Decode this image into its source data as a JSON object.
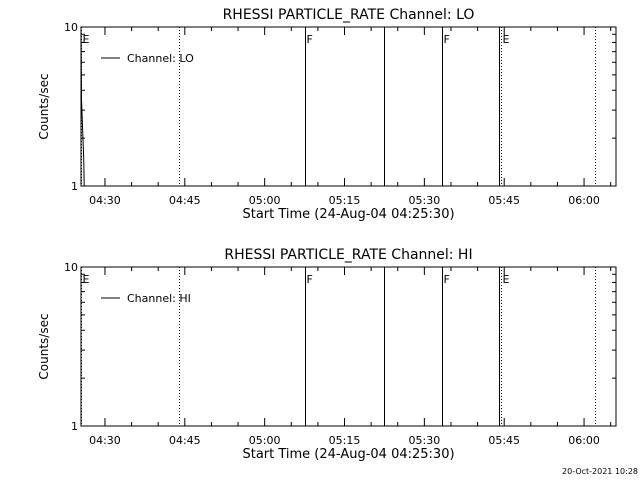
{
  "footer": {
    "timestamp": "20-Oct-2021 10:28"
  },
  "chart_data": [
    {
      "type": "line",
      "title": "RHESSI PARTICLE_RATE Channel: LO",
      "xlabel": "Start Time (24-Aug-04 04:25:30)",
      "ylabel": "Counts/sec",
      "xlim": [
        "04:25:30",
        "06:06:00"
      ],
      "ylim": [
        1,
        10
      ],
      "yscale": "log",
      "grid": false,
      "legend": "top-left",
      "xticks": [
        "04:30",
        "04:45",
        "05:00",
        "05:15",
        "05:30",
        "05:45",
        "06:00"
      ],
      "yticks": [
        "1",
        "10"
      ],
      "series": [
        {
          "name": "Channel: LO",
          "x": [
            "04:25:30",
            "04:25:36",
            "04:26:00",
            "04:26:06"
          ],
          "y": [
            10,
            3.5,
            1.5,
            1
          ]
        }
      ],
      "markers": [
        {
          "time": "04:25:30",
          "style": "dotted",
          "label": "E"
        },
        {
          "time": "04:43:50",
          "style": "dotted",
          "label": ""
        },
        {
          "time": "05:07:30",
          "style": "solid",
          "label": "F"
        },
        {
          "time": "05:22:30",
          "style": "solid",
          "label": ""
        },
        {
          "time": "05:33:20",
          "style": "solid",
          "label": "F"
        },
        {
          "time": "05:44:00",
          "style": "solid",
          "label": ""
        },
        {
          "time": "05:44:20",
          "style": "dotted",
          "label": "E"
        },
        {
          "time": "06:02:00",
          "style": "dotted",
          "label": ""
        }
      ]
    },
    {
      "type": "line",
      "title": "RHESSI PARTICLE_RATE Channel: HI",
      "xlabel": "Start Time (24-Aug-04 04:25:30)",
      "ylabel": "Counts/sec",
      "xlim": [
        "04:25:30",
        "06:06:00"
      ],
      "ylim": [
        1,
        10
      ],
      "yscale": "log",
      "grid": false,
      "legend": "top-left",
      "xticks": [
        "04:30",
        "04:45",
        "05:00",
        "05:15",
        "05:30",
        "05:45",
        "06:00"
      ],
      "yticks": [
        "1",
        "10"
      ],
      "series": [
        {
          "name": "Channel: HI",
          "x": [],
          "y": []
        }
      ],
      "markers": [
        {
          "time": "04:25:30",
          "style": "dotted",
          "label": "E"
        },
        {
          "time": "04:43:50",
          "style": "dotted",
          "label": ""
        },
        {
          "time": "05:07:30",
          "style": "solid",
          "label": "F"
        },
        {
          "time": "05:22:30",
          "style": "solid",
          "label": ""
        },
        {
          "time": "05:33:20",
          "style": "solid",
          "label": "F"
        },
        {
          "time": "05:44:00",
          "style": "solid",
          "label": ""
        },
        {
          "time": "05:44:20",
          "style": "dotted",
          "label": "E"
        },
        {
          "time": "06:02:00",
          "style": "dotted",
          "label": ""
        }
      ]
    }
  ]
}
